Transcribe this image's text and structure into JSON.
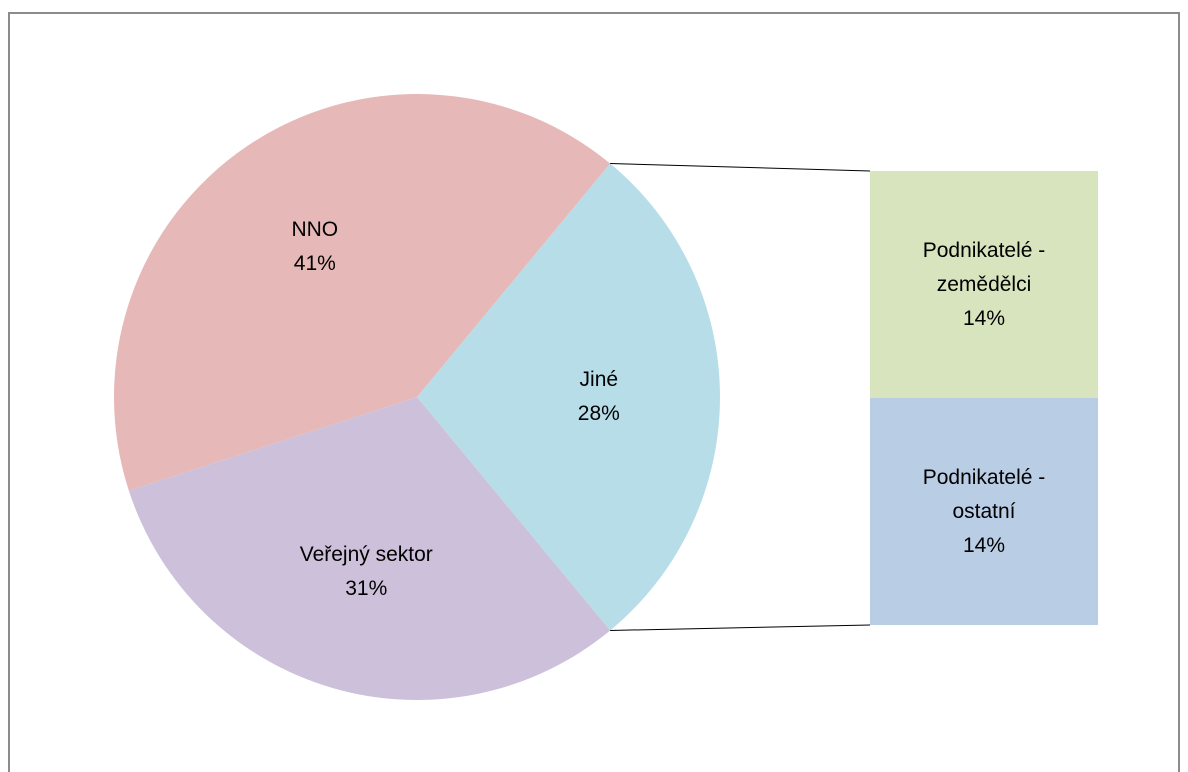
{
  "chart_data": {
    "type": "pie",
    "categories": [
      "Jiné",
      "Veřejný sektor",
      "NNO"
    ],
    "values": [
      28,
      31,
      41
    ],
    "value_labels": [
      "28%",
      "31%",
      "41%"
    ],
    "colors": [
      "#b7dee8",
      "#ccc0da",
      "#e6b8b7"
    ],
    "secondary": {
      "type": "bar",
      "categories": [
        "Podnikatelé - zemědělci",
        "Podnikatelé - ostatní"
      ],
      "values": [
        14,
        14
      ],
      "value_labels": [
        "14%",
        "14%"
      ],
      "colors": [
        "#d7e4bd",
        "#b9cde5"
      ]
    }
  }
}
